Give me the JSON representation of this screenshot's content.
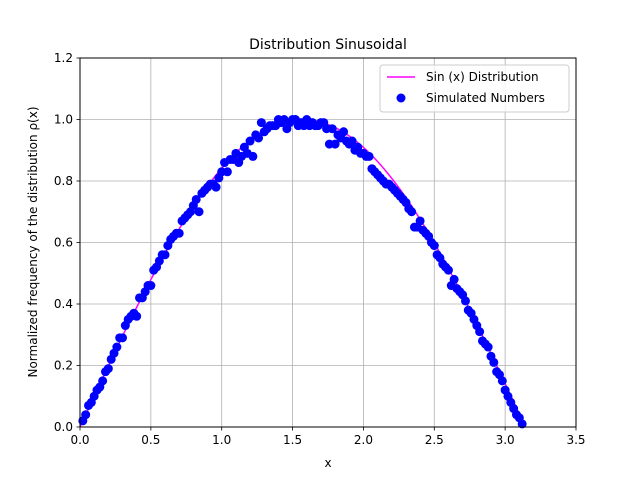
{
  "chart_data": {
    "type": "scatter",
    "title": "Distribution Sinusoidal",
    "xlabel": "x",
    "ylabel": "Normalized frequency of the distribution ρ(x)",
    "xlim": [
      0,
      3.5
    ],
    "ylim": [
      0,
      1.2
    ],
    "xticks": [
      "0.0",
      "0.5",
      "1.0",
      "1.5",
      "2.0",
      "2.5",
      "3.0",
      "3.5"
    ],
    "yticks": [
      "0.0",
      "0.2",
      "0.4",
      "0.6",
      "0.8",
      "1.0",
      "1.2"
    ],
    "grid": true,
    "legend_position": "top-right",
    "series": [
      {
        "name": "Sin (x) Distribution",
        "kind": "line",
        "color": "#ff00ff",
        "function": "sin(x)",
        "x_range": [
          0,
          3.14
        ]
      },
      {
        "name": "Simulated Numbers",
        "kind": "scatter",
        "color": "#0000ff",
        "points": [
          [
            0.02,
            0.02
          ],
          [
            0.04,
            0.04
          ],
          [
            0.06,
            0.07
          ],
          [
            0.08,
            0.08
          ],
          [
            0.1,
            0.1
          ],
          [
            0.12,
            0.12
          ],
          [
            0.14,
            0.13
          ],
          [
            0.16,
            0.15
          ],
          [
            0.18,
            0.18
          ],
          [
            0.2,
            0.19
          ],
          [
            0.22,
            0.22
          ],
          [
            0.24,
            0.24
          ],
          [
            0.26,
            0.26
          ],
          [
            0.28,
            0.29
          ],
          [
            0.3,
            0.29
          ],
          [
            0.32,
            0.33
          ],
          [
            0.34,
            0.35
          ],
          [
            0.36,
            0.36
          ],
          [
            0.38,
            0.37
          ],
          [
            0.4,
            0.36
          ],
          [
            0.42,
            0.42
          ],
          [
            0.44,
            0.42
          ],
          [
            0.46,
            0.44
          ],
          [
            0.48,
            0.46
          ],
          [
            0.5,
            0.46
          ],
          [
            0.52,
            0.51
          ],
          [
            0.54,
            0.52
          ],
          [
            0.56,
            0.54
          ],
          [
            0.58,
            0.56
          ],
          [
            0.6,
            0.56
          ],
          [
            0.62,
            0.59
          ],
          [
            0.64,
            0.61
          ],
          [
            0.66,
            0.62
          ],
          [
            0.68,
            0.63
          ],
          [
            0.7,
            0.63
          ],
          [
            0.72,
            0.67
          ],
          [
            0.74,
            0.68
          ],
          [
            0.76,
            0.69
          ],
          [
            0.78,
            0.7
          ],
          [
            0.8,
            0.72
          ],
          [
            0.82,
            0.74
          ],
          [
            0.84,
            0.7
          ],
          [
            0.86,
            0.76
          ],
          [
            0.88,
            0.77
          ],
          [
            0.9,
            0.78
          ],
          [
            0.92,
            0.79
          ],
          [
            0.94,
            0.79
          ],
          [
            0.96,
            0.78
          ],
          [
            0.98,
            0.81
          ],
          [
            1.0,
            0.83
          ],
          [
            1.02,
            0.86
          ],
          [
            1.04,
            0.83
          ],
          [
            1.06,
            0.87
          ],
          [
            1.08,
            0.87
          ],
          [
            1.1,
            0.89
          ],
          [
            1.12,
            0.86
          ],
          [
            1.14,
            0.88
          ],
          [
            1.16,
            0.91
          ],
          [
            1.18,
            0.89
          ],
          [
            1.2,
            0.93
          ],
          [
            1.22,
            0.88
          ],
          [
            1.24,
            0.95
          ],
          [
            1.26,
            0.94
          ],
          [
            1.28,
            0.99
          ],
          [
            1.3,
            0.96
          ],
          [
            1.32,
            0.97
          ],
          [
            1.34,
            0.98
          ],
          [
            1.36,
            0.98
          ],
          [
            1.38,
            0.98
          ],
          [
            1.4,
            1.0
          ],
          [
            1.42,
            0.99
          ],
          [
            1.44,
            1.0
          ],
          [
            1.46,
            0.97
          ],
          [
            1.48,
            0.99
          ],
          [
            1.5,
            1.0
          ],
          [
            1.52,
            1.0
          ],
          [
            1.54,
            0.98
          ],
          [
            1.56,
            0.99
          ],
          [
            1.58,
            0.98
          ],
          [
            1.6,
            1.0
          ],
          [
            1.62,
            0.98
          ],
          [
            1.64,
            0.99
          ],
          [
            1.66,
            0.98
          ],
          [
            1.68,
            0.98
          ],
          [
            1.7,
            0.99
          ],
          [
            1.72,
            0.99
          ],
          [
            1.74,
            0.97
          ],
          [
            1.76,
            0.92
          ],
          [
            1.78,
            0.97
          ],
          [
            1.8,
            0.92
          ],
          [
            1.82,
            0.95
          ],
          [
            1.84,
            0.94
          ],
          [
            1.86,
            0.96
          ],
          [
            1.88,
            0.93
          ],
          [
            1.9,
            0.92
          ],
          [
            1.92,
            0.93
          ],
          [
            1.94,
            0.9
          ],
          [
            1.96,
            0.91
          ],
          [
            1.98,
            0.89
          ],
          [
            2.0,
            0.89
          ],
          [
            2.02,
            0.88
          ],
          [
            2.04,
            0.88
          ],
          [
            2.06,
            0.84
          ],
          [
            2.08,
            0.83
          ],
          [
            2.1,
            0.82
          ],
          [
            2.12,
            0.81
          ],
          [
            2.14,
            0.8
          ],
          [
            2.16,
            0.79
          ],
          [
            2.18,
            0.79
          ],
          [
            2.2,
            0.78
          ],
          [
            2.22,
            0.77
          ],
          [
            2.24,
            0.76
          ],
          [
            2.26,
            0.75
          ],
          [
            2.28,
            0.74
          ],
          [
            2.3,
            0.73
          ],
          [
            2.32,
            0.71
          ],
          [
            2.34,
            0.7
          ],
          [
            2.36,
            0.65
          ],
          [
            2.38,
            0.65
          ],
          [
            2.4,
            0.67
          ],
          [
            2.42,
            0.64
          ],
          [
            2.44,
            0.63
          ],
          [
            2.46,
            0.62
          ],
          [
            2.48,
            0.6
          ],
          [
            2.5,
            0.59
          ],
          [
            2.52,
            0.56
          ],
          [
            2.54,
            0.55
          ],
          [
            2.56,
            0.53
          ],
          [
            2.58,
            0.52
          ],
          [
            2.6,
            0.51
          ],
          [
            2.62,
            0.46
          ],
          [
            2.64,
            0.48
          ],
          [
            2.66,
            0.45
          ],
          [
            2.68,
            0.44
          ],
          [
            2.7,
            0.43
          ],
          [
            2.72,
            0.41
          ],
          [
            2.74,
            0.38
          ],
          [
            2.76,
            0.37
          ],
          [
            2.78,
            0.35
          ],
          [
            2.8,
            0.33
          ],
          [
            2.82,
            0.31
          ],
          [
            2.84,
            0.28
          ],
          [
            2.86,
            0.27
          ],
          [
            2.88,
            0.26
          ],
          [
            2.9,
            0.23
          ],
          [
            2.92,
            0.21
          ],
          [
            2.94,
            0.18
          ],
          [
            2.96,
            0.17
          ],
          [
            2.98,
            0.15
          ],
          [
            3.0,
            0.12
          ],
          [
            3.02,
            0.1
          ],
          [
            3.04,
            0.08
          ],
          [
            3.06,
            0.06
          ],
          [
            3.08,
            0.04
          ],
          [
            3.1,
            0.03
          ],
          [
            3.12,
            0.01
          ]
        ]
      }
    ]
  }
}
